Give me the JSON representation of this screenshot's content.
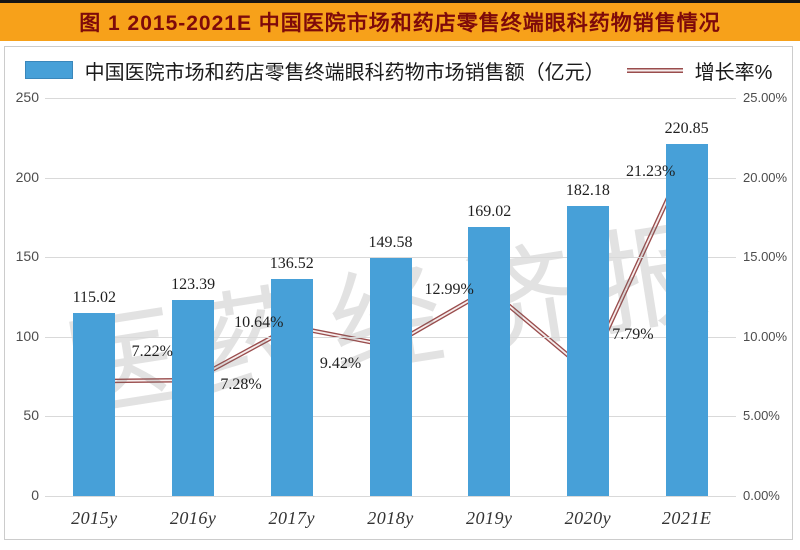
{
  "figure": {
    "title": "图 1  2015-2021E 中国医院市场和药店零售终端眼科药物销售情况"
  },
  "legend": {
    "bar_label": "中国医院市场和药店零售终端眼科药物市场销售额（亿元）",
    "line_label": "增长率%"
  },
  "watermark": "医药经济报",
  "colors": {
    "title_bg": "#F7A11A",
    "title_text": "#7E0A0A",
    "bar": "#47A0D8",
    "line": "#9A4D4D",
    "line_core": "#F6EDED",
    "marker": "#50505E",
    "grid": "#D9D9D9"
  },
  "chart_data": {
    "type": "bar",
    "categories": [
      "2015y",
      "2016y",
      "2017y",
      "2018y",
      "2019y",
      "2020y",
      "2021E"
    ],
    "series": [
      {
        "name": "中国医院市场和药店零售终端眼科药物市场销售额（亿元）",
        "type": "bar",
        "axis": "left",
        "values": [
          115.02,
          123.39,
          136.52,
          149.58,
          169.02,
          182.18,
          220.85
        ],
        "labels": [
          "115.02",
          "123.39",
          "136.52",
          "149.58",
          "169.02",
          "182.18",
          "220.85"
        ]
      },
      {
        "name": "增长率%",
        "type": "line",
        "axis": "right",
        "values": [
          7.22,
          7.28,
          10.64,
          9.42,
          12.99,
          7.79,
          21.23
        ],
        "labels": [
          "7.22%",
          "7.28%",
          "10.64%",
          "9.42%",
          "12.99%",
          "7.79%",
          "21.23%"
        ]
      }
    ],
    "left_axis": {
      "min": 0,
      "max": 250,
      "ticks": [
        "250",
        "200",
        "150",
        "100",
        "50",
        "0"
      ]
    },
    "right_axis": {
      "min": 0,
      "max": 25,
      "ticks": [
        "25.00%",
        "20.00%",
        "15.00%",
        "10.00%",
        "5.00%",
        "0.00%"
      ]
    },
    "grid": "horizontal",
    "legend_position": "top"
  }
}
